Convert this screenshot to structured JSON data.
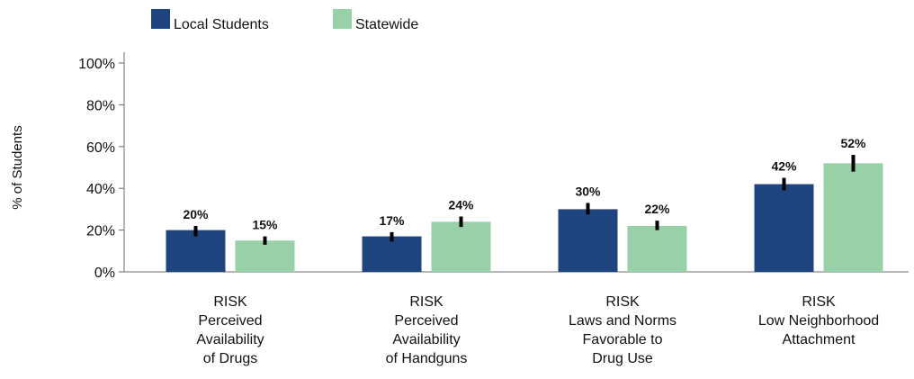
{
  "chart_data": {
    "type": "bar",
    "ylabel": "% of Students",
    "ylim": [
      0,
      100
    ],
    "yticks": [
      0,
      20,
      40,
      60,
      80,
      100
    ],
    "ytick_labels": [
      "0%",
      "20%",
      "40%",
      "60%",
      "80%",
      "100%"
    ],
    "grid": false,
    "legend_placement": "top-left",
    "categories": [
      [
        "RISK",
        "Perceived",
        "Availability",
        "of Drugs"
      ],
      [
        "RISK",
        "Perceived",
        "Availability",
        "of Handguns"
      ],
      [
        "RISK",
        "Laws and Norms",
        "Favorable to",
        "Drug Use"
      ],
      [
        "RISK",
        "Low Neighborhood",
        "Attachment"
      ]
    ],
    "series": [
      {
        "name": "Local Students",
        "color": "#1f4580",
        "values": [
          20,
          17,
          30,
          42
        ],
        "value_labels": [
          "20%",
          "17%",
          "30%",
          "42%"
        ],
        "error_bars": [
          [
            17,
            22
          ],
          [
            14.5,
            19
          ],
          [
            27.5,
            33
          ],
          [
            39,
            45
          ]
        ]
      },
      {
        "name": "Statewide",
        "color": "#98d1a8",
        "values": [
          15,
          24,
          22,
          52
        ],
        "value_labels": [
          "15%",
          "24%",
          "22%",
          "52%"
        ],
        "error_bars": [
          [
            13,
            17
          ],
          [
            21.5,
            26.5
          ],
          [
            20,
            24.5
          ],
          [
            48,
            56
          ]
        ]
      }
    ]
  }
}
